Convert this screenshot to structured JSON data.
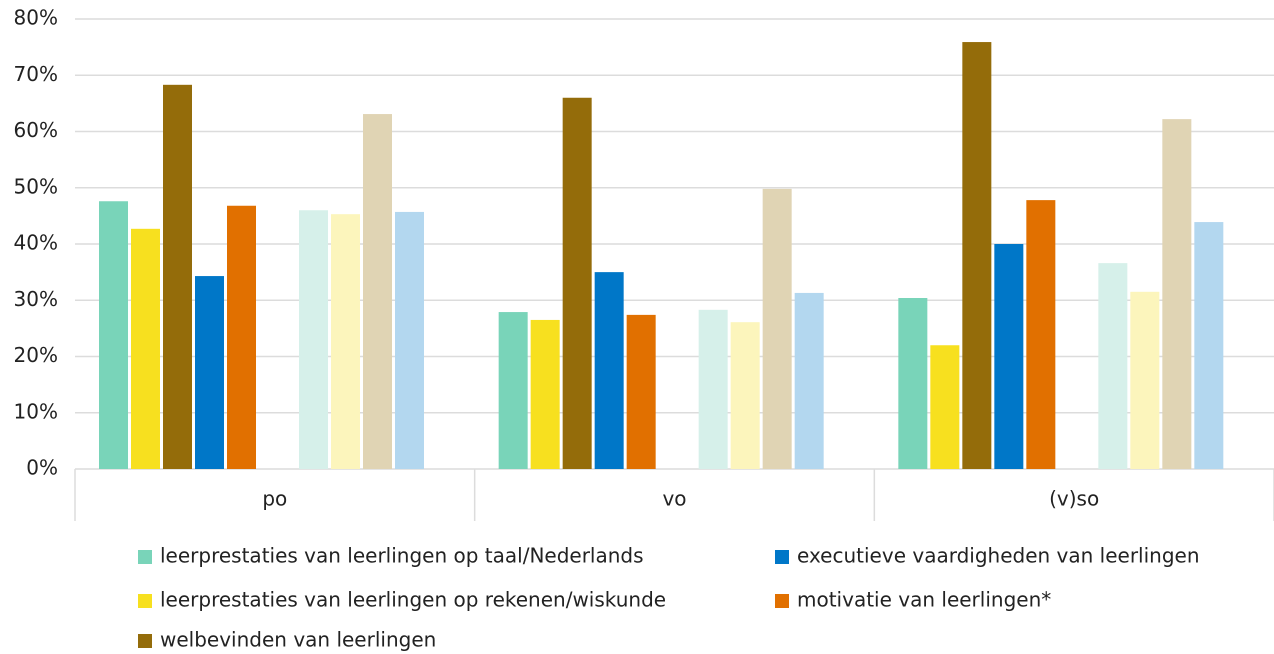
{
  "chart_data": {
    "type": "bar",
    "categories": [
      "po",
      "vo",
      "(v)so"
    ],
    "series": [
      {
        "name": "leerprestaties van leerlingen op taal/Nederlands",
        "color": "#79d4b9",
        "values": [
          47.6,
          27.9,
          30.4
        ]
      },
      {
        "name": "leerprestaties van leerlingen op rekenen/wiskunde",
        "color": "#f7e01f",
        "values": [
          42.7,
          26.5,
          22.0
        ]
      },
      {
        "name": "welbevinden van leerlingen",
        "color": "#946c0a",
        "values": [
          68.3,
          66.0,
          75.9
        ]
      },
      {
        "name": "executieve vaardigheden van leerlingen",
        "color": "#0077c8",
        "values": [
          34.3,
          35.0,
          40.0
        ]
      },
      {
        "name": "motivatie van leerlingen*",
        "color": "#e17000",
        "values": [
          46.8,
          27.4,
          47.8
        ]
      }
    ],
    "comparison_series": [
      {
        "color": "#d6f0ea",
        "values": [
          46.0,
          28.3,
          36.6
        ]
      },
      {
        "color": "#fcf5bc",
        "values": [
          45.3,
          26.1,
          31.5
        ]
      },
      {
        "color": "#e0d4b4",
        "values": [
          63.1,
          49.8,
          62.2
        ]
      },
      {
        "color": "#b3d7ef",
        "values": [
          45.7,
          31.3,
          43.9
        ]
      }
    ],
    "ylim": [
      0,
      80
    ],
    "yticks": [
      {
        "value": 0,
        "label": "0%"
      },
      {
        "value": 10,
        "label": "10%"
      },
      {
        "value": 20,
        "label": "20%"
      },
      {
        "value": 30,
        "label": "30%"
      },
      {
        "value": 40,
        "label": "40%"
      },
      {
        "value": 50,
        "label": "50%"
      },
      {
        "value": 60,
        "label": "60%"
      },
      {
        "value": 70,
        "label": "70%"
      },
      {
        "value": 80,
        "label": "80%"
      }
    ],
    "grid": true
  }
}
